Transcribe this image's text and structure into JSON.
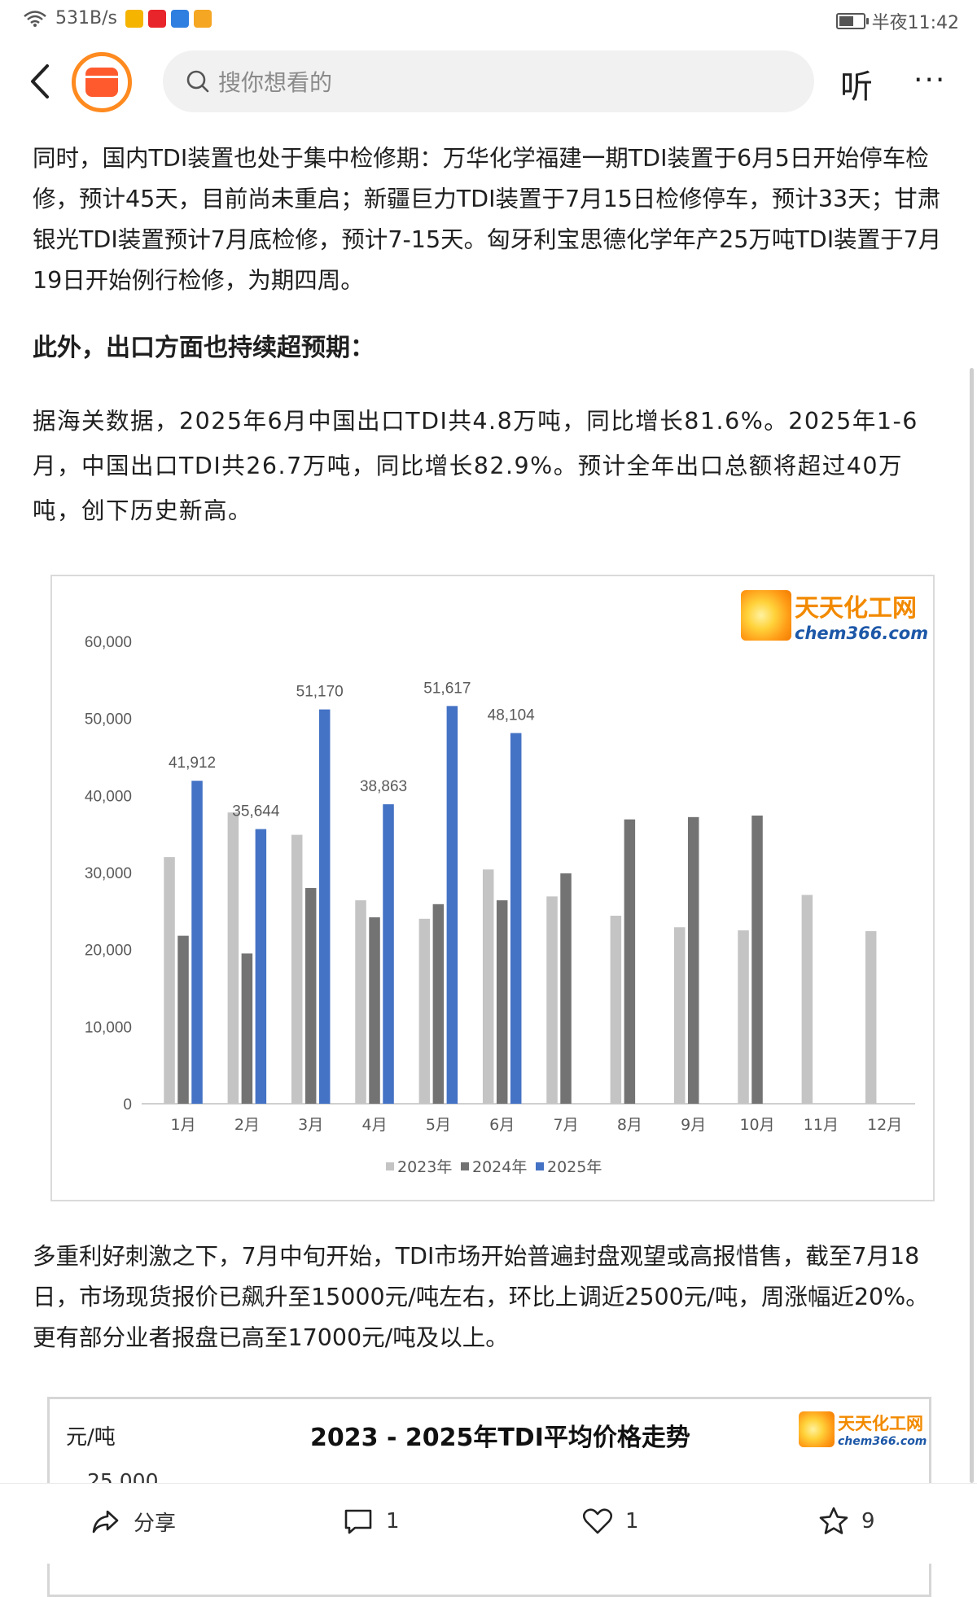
{
  "status_bar": {
    "net_speed": "531B/s",
    "time": "半夜11:42",
    "app_icons": [
      "weibo-icon",
      "toutiao-icon",
      "browser-icon",
      "app-icon"
    ],
    "app_icon_colors": [
      "#f5b400",
      "#e8252b",
      "#2f7fe0",
      "#f5a623"
    ],
    "battery_level": 0.62
  },
  "nav": {
    "search_placeholder": "搜你想看的",
    "listen_label": "听",
    "more_label": "···"
  },
  "article": {
    "para1": "同时，国内TDI装置也处于集中检修期：万华化学福建一期TDI装置于6月5日开始停车检修，预计45天，目前尚未重启；新疆巨力TDI装置于7月15日检修停车，预计33天；甘肃银光TDI装置预计7月底检修，预计7-15天。匈牙利宝思德化学年产25万吨TDI装置于7月19日开始例行检修，为期四周。",
    "para2": "此外，出口方面也持续超预期：",
    "para3": "据海关数据，2025年6月中国出口TDI共4.8万吨，同比增长81.6%。2025年1-6月，中国出口TDI共26.7万吨，同比增长82.9%。预计全年出口总额将超过40万吨，创下历史新高。",
    "para4": "多重利好刺激之下，7月中旬开始，TDI市场开始普遍封盘观望或高报惜售，截至7月18日，市场现货报价已飙升至15000元/吨左右，环比上调近2500元/吨，周涨幅近20%。更有部分业者报盘已高至17000元/吨及以上。"
  },
  "brand": {
    "cn": "天天化工网",
    "en": "chem366.com"
  },
  "chart_data": [
    {
      "type": "bar",
      "title": "",
      "xlabel": "",
      "ylabel": "",
      "categories": [
        "1月",
        "2月",
        "3月",
        "4月",
        "5月",
        "6月",
        "7月",
        "8月",
        "9月",
        "10月",
        "11月",
        "12月"
      ],
      "series": [
        {
          "name": "2023年",
          "color": "#c4c4c4",
          "values": [
            32000,
            37800,
            34900,
            26400,
            24000,
            30400,
            26900,
            24400,
            22900,
            22500,
            27100,
            22400
          ]
        },
        {
          "name": "2024年",
          "color": "#737373",
          "values": [
            21800,
            19500,
            28000,
            24200,
            25900,
            26400,
            29900,
            36900,
            37200,
            37400,
            null,
            null
          ]
        },
        {
          "name": "2025年",
          "color": "#4472c4",
          "values": [
            41912,
            35644,
            51170,
            38863,
            51617,
            48104,
            null,
            null,
            null,
            null,
            null,
            null
          ]
        }
      ],
      "data_labels": [
        "41,912",
        "35,644",
        "51,170",
        "38,863",
        "51,617",
        "48,104"
      ],
      "y_ticks": [
        "0",
        "10,000",
        "20,000",
        "30,000",
        "40,000",
        "50,000",
        "60,000"
      ],
      "ylim": [
        0,
        60000
      ],
      "grid": false,
      "legend": "bottom-center"
    },
    {
      "type": "line",
      "title": "2023 - 2025年TDI平均价格走势",
      "ylabel": "元/吨",
      "y_ticks_visible": [
        "25,000"
      ]
    }
  ],
  "bottom_bar": {
    "share_label": "分享",
    "comment_count": "1",
    "like_count": "1",
    "favorite_count": "9"
  }
}
